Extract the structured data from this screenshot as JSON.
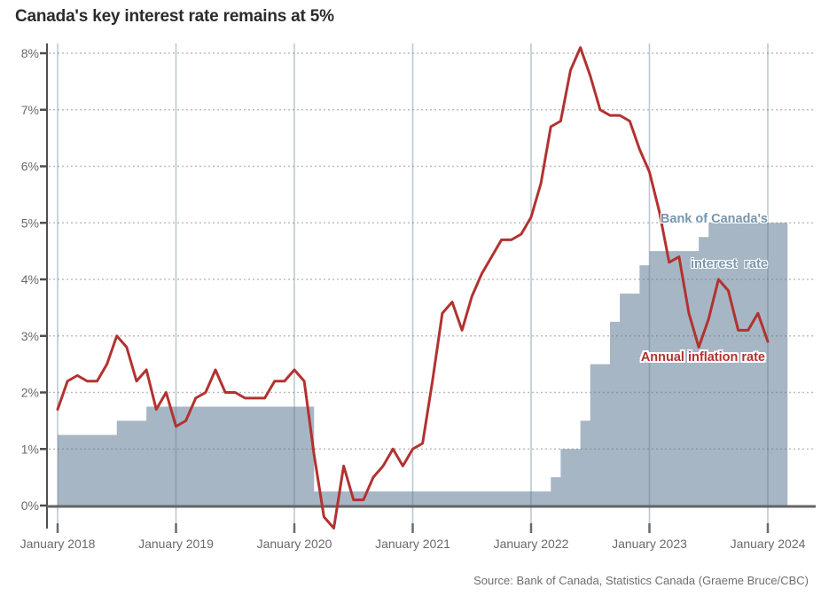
{
  "page": {
    "title": "Canada's key interest rate remains at 5%",
    "source": "Source: Bank of Canada, Statistics Canada (Graeme Bruce/CBC)"
  },
  "annotations": {
    "interest_label_line1": "Bank of Canada's",
    "interest_label_line2": "interest  rate",
    "inflation_label": "Annual inflation rate"
  },
  "colors": {
    "area": "#a6b6c4",
    "line": "#b23230",
    "grid": "rgba(110,110,110,0.45)",
    "month_line": "rgba(98,124,146,0.42)",
    "axis": "#4f4f4f",
    "baseline": "#646464",
    "x_tick": "#6a6a6a",
    "interest_label_color": "#7795ae",
    "inflation_label_color": "#b23230"
  },
  "chart_data": {
    "type": "line",
    "title": "Canada's key interest rate remains at 5%",
    "xlabel": "",
    "ylabel": "",
    "ylim": [
      0,
      8
    ],
    "grid": "dotted horizontal at each 1%, light vertical line at each January",
    "x_tick_labels": [
      "January 2018",
      "January 2019",
      "January 2020",
      "January 2021",
      "January 2022",
      "January 2023",
      "January 2024"
    ],
    "y_tick_labels": [
      "0%",
      "1%",
      "2%",
      "3%",
      "4%",
      "5%",
      "6%",
      "7%",
      "8%"
    ],
    "series": [
      {
        "name": "Bank of Canada's interest rate",
        "type": "step-area",
        "note": "months counted from January 2018 = 0",
        "steps": [
          {
            "month": 0,
            "rate": 1.25
          },
          {
            "month": 6,
            "rate": 1.5
          },
          {
            "month": 9,
            "rate": 1.75
          },
          {
            "month": 26,
            "rate": 0.25
          },
          {
            "month": 50,
            "rate": 0.5
          },
          {
            "month": 51,
            "rate": 1.0
          },
          {
            "month": 53,
            "rate": 1.5
          },
          {
            "month": 54,
            "rate": 2.5
          },
          {
            "month": 56,
            "rate": 3.25
          },
          {
            "month": 57,
            "rate": 3.75
          },
          {
            "month": 59,
            "rate": 4.25
          },
          {
            "month": 60,
            "rate": 4.5
          },
          {
            "month": 65,
            "rate": 4.75
          },
          {
            "month": 66,
            "rate": 5.0
          }
        ],
        "end_month": 74
      },
      {
        "name": "Annual inflation rate",
        "type": "line",
        "start_month": 0,
        "values": [
          1.7,
          2.2,
          2.3,
          2.2,
          2.2,
          2.5,
          3.0,
          2.8,
          2.2,
          2.4,
          1.7,
          2.0,
          1.4,
          1.5,
          1.9,
          2.0,
          2.4,
          2.0,
          2.0,
          1.9,
          1.9,
          1.9,
          2.2,
          2.2,
          2.4,
          2.2,
          0.9,
          -0.2,
          -0.4,
          0.7,
          0.1,
          0.1,
          0.5,
          0.7,
          1.0,
          0.7,
          1.0,
          1.1,
          2.2,
          3.4,
          3.6,
          3.1,
          3.7,
          4.1,
          4.4,
          4.7,
          4.7,
          4.8,
          5.1,
          5.7,
          6.7,
          6.8,
          7.7,
          8.1,
          7.6,
          7.0,
          6.9,
          6.9,
          6.8,
          6.3,
          5.9,
          5.2,
          4.3,
          4.4,
          3.4,
          2.8,
          3.3,
          4.0,
          3.8,
          3.1,
          3.1,
          3.4,
          2.9
        ]
      }
    ]
  }
}
